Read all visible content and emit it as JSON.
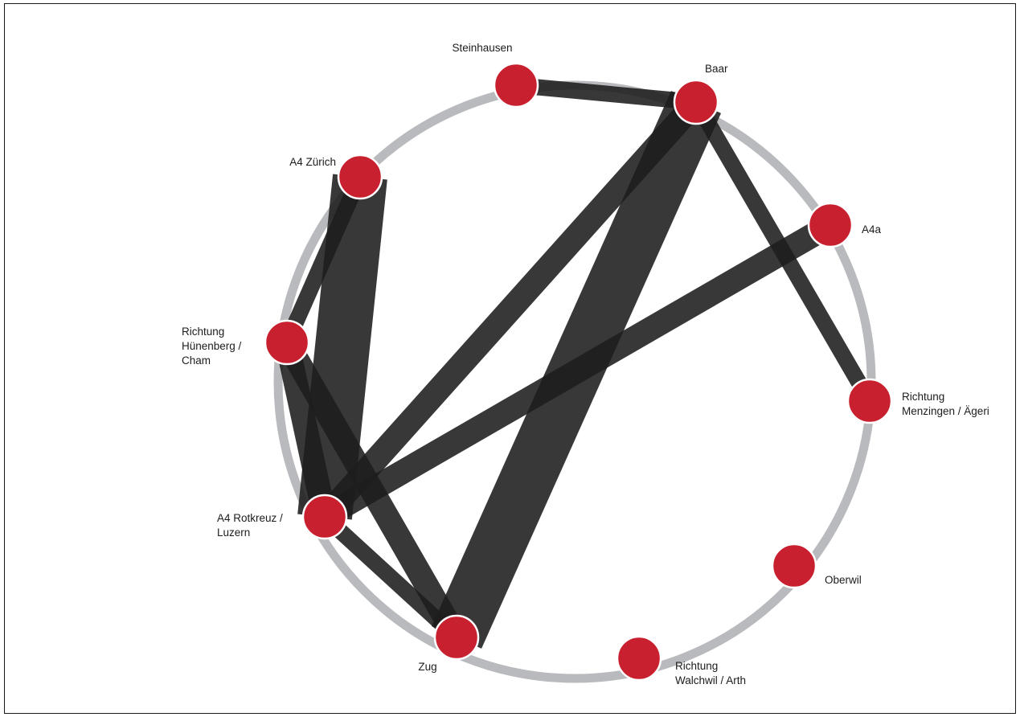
{
  "colors": {
    "ring": "#b9babd",
    "node_fill": "#c8202e",
    "node_stroke": "#ffffff",
    "flow": "#1c1c1c"
  },
  "nodes": [
    {
      "id": "steinhausen",
      "label": [
        "Steinhausen"
      ]
    },
    {
      "id": "baar",
      "label": [
        "Baar"
      ]
    },
    {
      "id": "a4-zuerich",
      "label": [
        "A4 Zürich"
      ]
    },
    {
      "id": "a4a",
      "label": [
        "A4a"
      ]
    },
    {
      "id": "huenenberg-cham",
      "label": [
        "Richtung",
        "Hünenberg /",
        "Cham"
      ]
    },
    {
      "id": "menzingen-aegeri",
      "label": [
        "Richtung",
        "Menzingen / Ägeri"
      ]
    },
    {
      "id": "a4-rotkreuz-luzern",
      "label": [
        "A4 Rotkreuz /",
        "Luzern"
      ]
    },
    {
      "id": "oberwil",
      "label": [
        "Oberwil"
      ]
    },
    {
      "id": "zug",
      "label": [
        "Zug"
      ]
    },
    {
      "id": "walchwil-arth",
      "label": [
        "Richtung",
        "Walchwil / Arth"
      ]
    }
  ],
  "flows": [
    {
      "from": "steinhausen",
      "to": "baar",
      "width": "medium"
    },
    {
      "from": "baar",
      "to": "zug",
      "width": "very-large"
    },
    {
      "from": "baar",
      "to": "a4-rotkreuz-luzern",
      "width": "large"
    },
    {
      "from": "baar",
      "to": "menzingen-aegeri",
      "width": "medium"
    },
    {
      "from": "a4-zuerich",
      "to": "a4-rotkreuz-luzern",
      "width": "very-large"
    },
    {
      "from": "a4-zuerich",
      "to": "huenenberg-cham",
      "width": "medium"
    },
    {
      "from": "a4a",
      "to": "a4-rotkreuz-luzern",
      "width": "large"
    },
    {
      "from": "huenenberg-cham",
      "to": "zug",
      "width": "large"
    },
    {
      "from": "huenenberg-cham",
      "to": "a4-rotkreuz-luzern",
      "width": "large"
    },
    {
      "from": "a4-rotkreuz-luzern",
      "to": "zug",
      "width": "medium"
    }
  ]
}
